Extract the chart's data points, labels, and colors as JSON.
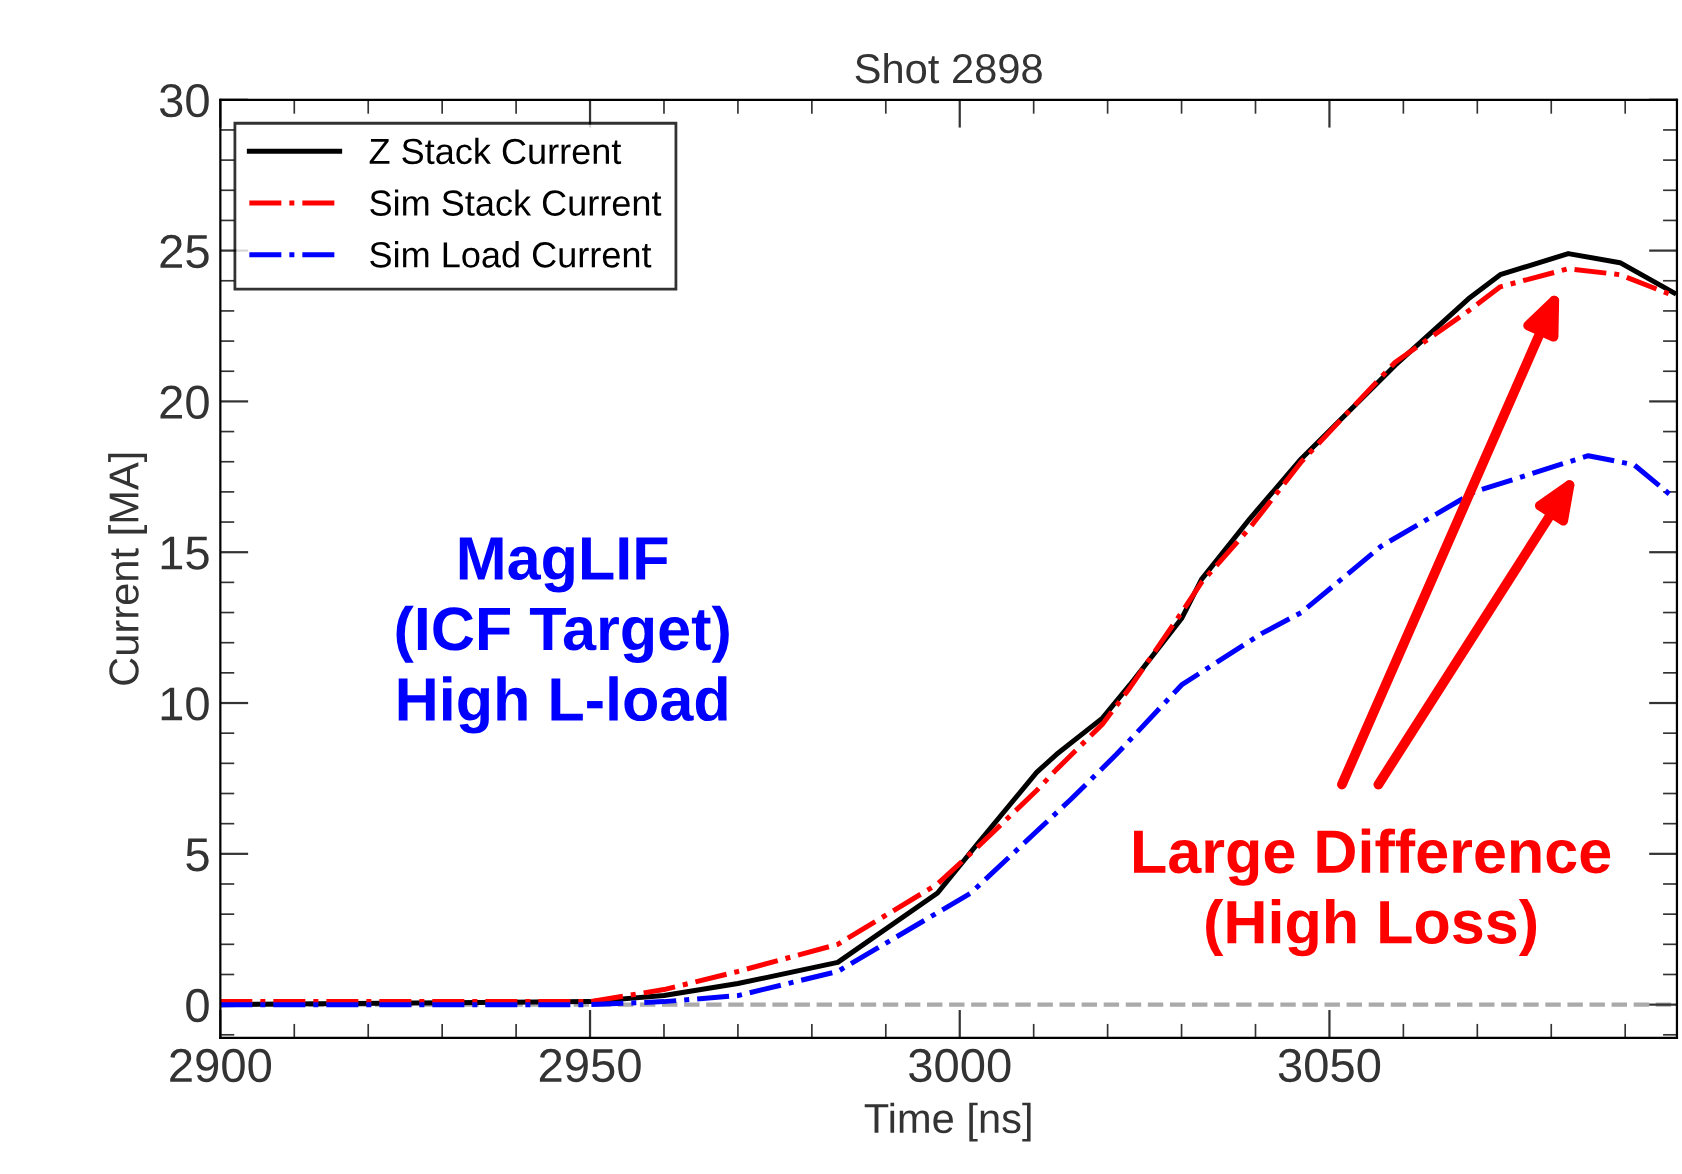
{
  "chart_data": {
    "type": "line",
    "title": "Shot 2898",
    "xlabel": "Time [ns]",
    "ylabel": "Current [MA]",
    "xlim": [
      2900,
      3097
    ],
    "xticks": [
      2900,
      2950,
      3000,
      3050
    ],
    "ylim": [
      -1.1,
      30
    ],
    "yticks": [
      0,
      5,
      10,
      15,
      20,
      25,
      30
    ],
    "grid": false,
    "legend": "top left",
    "marker": "none",
    "series": [
      {
        "name": "Z Stack Current",
        "color": "#000000",
        "line_style": "solid",
        "x": [
          2900,
          2950,
          2960,
          2970,
          2983.5,
          2997,
          3002.3,
          3010.4,
          3013.1,
          3019.3,
          3023.0,
          3030.0,
          3032.7,
          3039.2,
          3046.2,
          3058.9,
          3068.8,
          3073.1,
          3082.3,
          3089.3,
          3096.6
        ],
        "values": [
          0,
          0.1,
          0.3,
          0.7,
          1.4,
          3.7,
          5.3,
          7.7,
          8.3,
          9.5,
          10.6,
          12.8,
          14.1,
          16.1,
          18.1,
          21.2,
          23.4,
          24.2,
          24.9,
          24.6,
          23.6
        ]
      },
      {
        "name": "Sim Stack Current",
        "color": "#ff0000",
        "line_style": "dashdot",
        "x": [
          2900,
          2950,
          2960,
          2970,
          2983.5,
          2997,
          3002.3,
          3010.4,
          3013.1,
          3019.3,
          3023.0,
          3030.0,
          3032.7,
          3039.2,
          3046.2,
          3058.9,
          3068.8,
          3073.1,
          3082.3,
          3089.3,
          3096.6
        ],
        "values": [
          0.1,
          0.1,
          0.5,
          1.1,
          2.0,
          4.0,
          5.2,
          7.1,
          7.8,
          9.3,
          10.5,
          13.0,
          14.0,
          15.8,
          18.0,
          21.3,
          23.0,
          23.8,
          24.4,
          24.2,
          23.5
        ]
      },
      {
        "name": "Sim Load Current",
        "color": "#0000ff",
        "line_style": "dashdot",
        "x": [
          2900,
          2950,
          2960,
          2970,
          2983.5,
          3001.5,
          3015.0,
          3021.2,
          3030.0,
          3040.8,
          3046.2,
          3057.0,
          3069.6,
          3085.0,
          3091.2,
          3096.6
        ],
        "values": [
          0,
          0,
          0.1,
          0.3,
          1.1,
          3.7,
          6.8,
          8.3,
          10.6,
          12.3,
          13.0,
          15.2,
          17.0,
          18.2,
          17.9,
          16.8
        ]
      }
    ],
    "ref_lines": [
      {
        "axis": "y",
        "value": 0,
        "color": "#aaaaaa",
        "line_style": "dashed"
      }
    ],
    "annotations": [
      "MagLIF\n(ICF Target)\nHigh L-load",
      "Large Difference\n(High Loss)"
    ]
  }
}
